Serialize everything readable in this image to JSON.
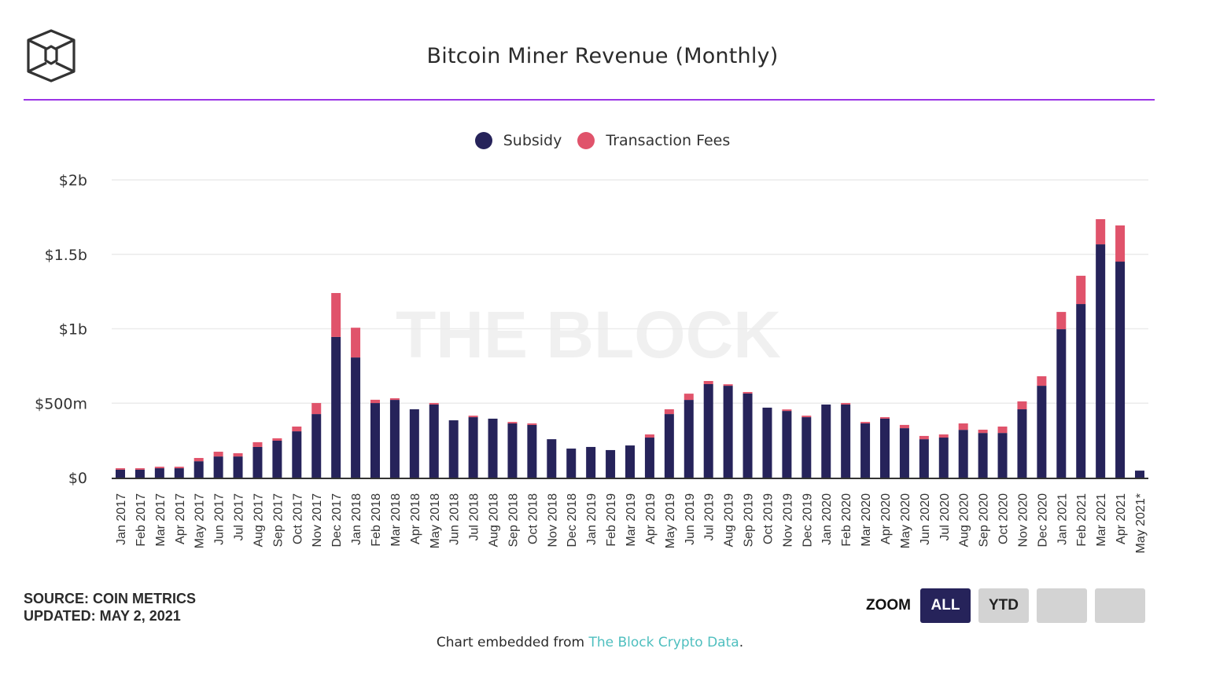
{
  "header": {
    "title": "Bitcoin Miner Revenue (Monthly)",
    "logo_icon": "the-block-cube-logo-icon"
  },
  "watermark": "THE BLOCK",
  "footer": {
    "source": "SOURCE: COIN METRICS",
    "updated": "UPDATED: MAY 2, 2021",
    "embed_prefix": "Chart embedded from ",
    "embed_link": "The Block Crypto Data",
    "embed_suffix": "."
  },
  "zoom_controls": {
    "label": "ZOOM",
    "buttons": [
      {
        "label": "ALL",
        "active": true
      },
      {
        "label": "YTD",
        "active": false
      },
      {
        "label": "",
        "active": false
      },
      {
        "label": "",
        "active": false
      }
    ]
  },
  "colors": {
    "subsidy": "#26235a",
    "fees": "#e0536b",
    "accent_rule": "#9b34e6",
    "link": "#4fbfbf"
  },
  "chart_data": {
    "type": "bar",
    "stacked": true,
    "title": "Bitcoin Miner Revenue (Monthly)",
    "xlabel": "",
    "ylabel": "",
    "unit": "USD millions",
    "ylim": [
      0,
      2000
    ],
    "yticks": [
      0,
      500,
      1000,
      1500,
      2000
    ],
    "ytick_labels": [
      "$0",
      "$500m",
      "$1b",
      "$1.5b",
      "$2b"
    ],
    "grid": true,
    "legend_position": "top-center",
    "categories": [
      "Jan 2017",
      "Feb 2017",
      "Mar 2017",
      "Apr 2017",
      "May 2017",
      "Jun 2017",
      "Jul 2017",
      "Aug 2017",
      "Sep 2017",
      "Oct 2017",
      "Nov 2017",
      "Dec 2017",
      "Jan 2018",
      "Feb 2018",
      "Mar 2018",
      "Apr 2018",
      "May 2018",
      "Jun 2018",
      "Jul 2018",
      "Aug 2018",
      "Sep 2018",
      "Oct 2018",
      "Nov 2018",
      "Dec 2018",
      "Jan 2019",
      "Feb 2019",
      "Mar 2019",
      "Apr 2019",
      "May 2019",
      "Jun 2019",
      "Jul 2019",
      "Aug 2019",
      "Sep 2019",
      "Oct 2019",
      "Nov 2019",
      "Dec 2019",
      "Jan 2020",
      "Feb 2020",
      "Mar 2020",
      "Apr 2020",
      "May 2020",
      "Jun 2020",
      "Jul 2020",
      "Aug 2020",
      "Sep 2020",
      "Oct 2020",
      "Nov 2020",
      "Dec 2020",
      "Jan 2021",
      "Feb 2021",
      "Mar 2021",
      "Apr 2021",
      "May 2021*"
    ],
    "series": [
      {
        "name": "Subsidy",
        "color": "#26235a",
        "values": [
          53,
          53,
          63,
          63,
          110,
          142,
          142,
          206,
          248,
          311,
          427,
          945,
          807,
          501,
          522,
          459,
          491,
          385,
          406,
          396,
          364,
          354,
          258,
          195,
          206,
          185,
          216,
          269,
          427,
          522,
          628,
          617,
          565,
          470,
          448,
          406,
          491,
          491,
          364,
          396,
          332,
          258,
          269,
          321,
          300,
          300,
          459,
          617,
          997,
          1166,
          1567,
          1451,
          47
        ]
      },
      {
        "name": "Transaction Fees",
        "color": "#e0536b",
        "values": [
          10,
          10,
          10,
          10,
          22,
          32,
          22,
          32,
          16,
          32,
          74,
          295,
          200,
          22,
          11,
          0,
          10,
          0,
          10,
          0,
          10,
          10,
          0,
          0,
          0,
          0,
          0,
          21,
          32,
          42,
          21,
          10,
          10,
          0,
          10,
          10,
          0,
          10,
          10,
          10,
          22,
          22,
          21,
          43,
          22,
          43,
          53,
          64,
          116,
          190,
          169,
          243,
          0
        ]
      }
    ]
  }
}
